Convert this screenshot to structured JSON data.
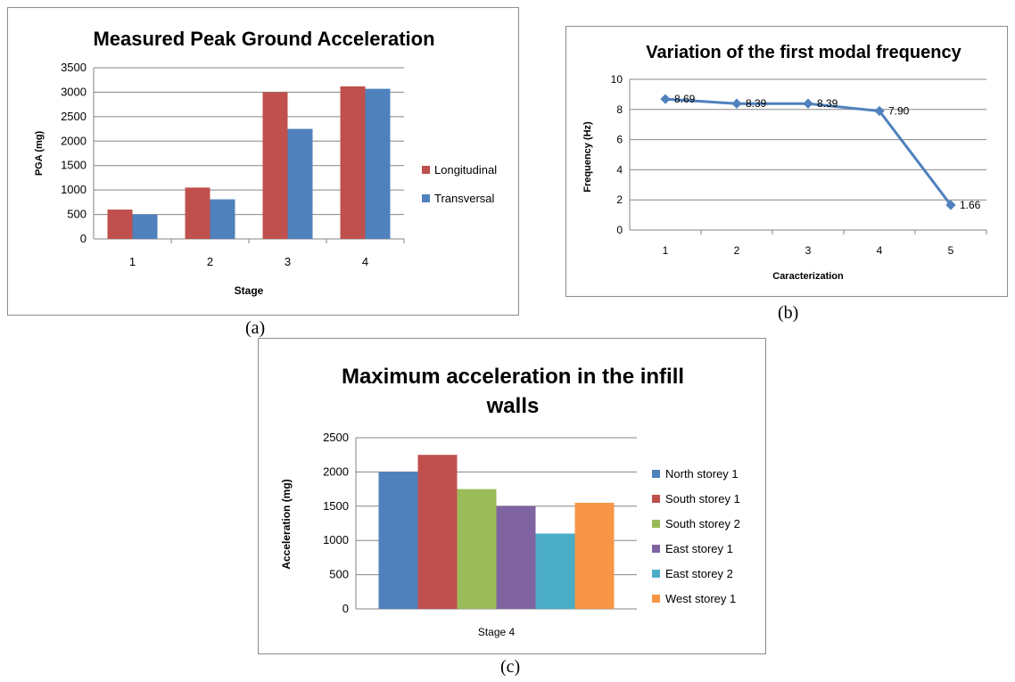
{
  "captions": {
    "a": "(a)",
    "b": "(b)",
    "c": "(c)"
  },
  "chart_data": [
    {
      "type": "bar",
      "title": "Measured Peak Ground Acceleration",
      "xlabel": "Stage",
      "ylabel": "PGA (mg)",
      "categories": [
        "1",
        "2",
        "3",
        "4"
      ],
      "ylim": [
        0,
        3500
      ],
      "yticks": [
        "0",
        "500",
        "1000",
        "1500",
        "2000",
        "2500",
        "3000",
        "3500"
      ],
      "grid": true,
      "legend": "right",
      "series": [
        {
          "name": "Longitudinal",
          "color": "#c0504d",
          "values": [
            600,
            1050,
            3000,
            3120
          ]
        },
        {
          "name": "Transversal",
          "color": "#4f81bd",
          "values": [
            500,
            810,
            2250,
            3070
          ]
        }
      ]
    },
    {
      "type": "line",
      "title": "Variation of the first modal frequency",
      "xlabel": "Caracterization",
      "ylabel": "Frequency (Hz)",
      "x": [
        "1",
        "2",
        "3",
        "4",
        "5"
      ],
      "ylim": [
        0,
        10
      ],
      "yticks": [
        "0",
        "2",
        "4",
        "6",
        "8",
        "10"
      ],
      "grid": true,
      "series": [
        {
          "color": "#4f81bd",
          "values": [
            8.69,
            8.39,
            8.39,
            7.9,
            1.66
          ],
          "labels": [
            "8.69",
            "8.39",
            "8.39",
            "7.90",
            "1.66"
          ]
        }
      ]
    },
    {
      "type": "bar",
      "title": "Maximum acceleration in the infill walls",
      "title_lines": [
        "Maximum acceleration in the infill",
        "walls"
      ],
      "xlabel": "",
      "ylabel": "Acceleration (mg)",
      "categories": [
        "Stage 4"
      ],
      "ylim": [
        0,
        2500
      ],
      "yticks": [
        "0",
        "500",
        "1000",
        "1500",
        "2000",
        "2500"
      ],
      "grid": true,
      "legend": "right",
      "series": [
        {
          "name": "North storey 1",
          "color": "#4f81bd",
          "values": [
            2000
          ]
        },
        {
          "name": "South storey 1",
          "color": "#c0504d",
          "values": [
            2250
          ]
        },
        {
          "name": "South storey 2",
          "color": "#9bbb59",
          "values": [
            1750
          ]
        },
        {
          "name": "East storey 1",
          "color": "#8064a2",
          "values": [
            1500
          ]
        },
        {
          "name": "East storey 2",
          "color": "#4bacc6",
          "values": [
            1100
          ]
        },
        {
          "name": "West storey 1",
          "color": "#f79646",
          "values": [
            1550
          ]
        }
      ]
    }
  ]
}
